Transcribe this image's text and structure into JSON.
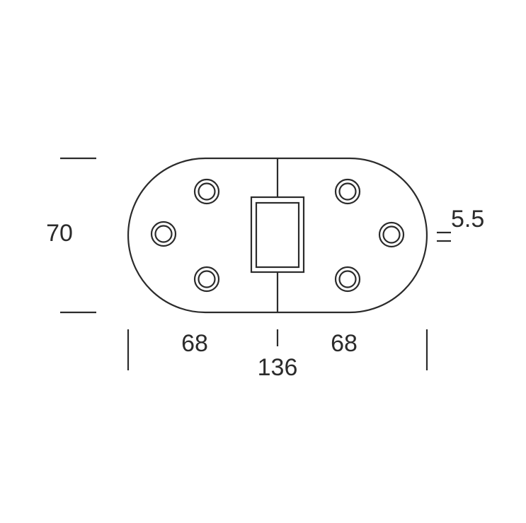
{
  "drawing": {
    "line_color": "#2b2b2b",
    "background": "#ffffff"
  },
  "dimensions": {
    "height_label": "70",
    "left_width_label": "68",
    "right_width_label": "68",
    "total_width_label": "136",
    "thickness_label": "5.5"
  }
}
